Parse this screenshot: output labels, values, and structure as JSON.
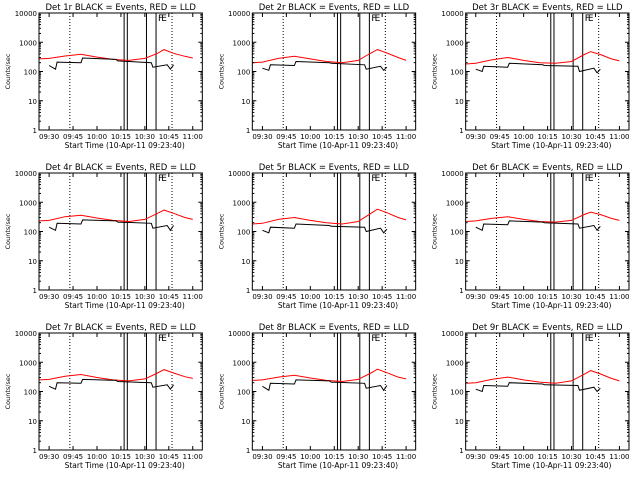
{
  "chart_data": [
    {
      "type": "line",
      "title": "Det 1r BLACK = Events, RED = LLD",
      "xlabel": "Start Time (10-Apr-11 09:23:40)",
      "ylabel": "Counts/sec",
      "xticks": [
        "09:30",
        "09:45",
        "10:00",
        "10:15",
        "10:30",
        "10:45",
        "11:00"
      ],
      "yticks": [
        "1",
        "10",
        "100",
        "1000",
        "10000"
      ],
      "ylim": [
        1,
        10000
      ],
      "yscale": "log",
      "vlines_dotted": [
        "09:43",
        "10:47"
      ],
      "vlines_solid": [
        "10:17",
        "10:19",
        "10:31",
        "10:37"
      ],
      "flags": [
        {
          "label": "F",
          "x": "10:37"
        },
        {
          "label": "E",
          "x": "10:39"
        }
      ],
      "series": [
        {
          "name": "RED = LLD",
          "color": "#ff0000",
          "x": [
            "09:24",
            "09:30",
            "09:40",
            "09:50",
            "10:00",
            "10:10",
            "10:20",
            "10:30",
            "10:38",
            "10:42",
            "10:48",
            "10:55",
            "11:00"
          ],
          "values": [
            270,
            280,
            340,
            390,
            310,
            260,
            240,
            280,
            420,
            560,
            420,
            330,
            290
          ]
        },
        {
          "name": "BLACK = Events",
          "color": "#000000",
          "x": [
            "09:30",
            "09:34",
            "09:35",
            "09:50",
            "09:51",
            "10:12",
            "10:13",
            "10:34",
            "10:35",
            "10:44",
            "10:46",
            "10:48"
          ],
          "values": [
            160,
            120,
            210,
            200,
            290,
            260,
            230,
            200,
            140,
            170,
            120,
            170
          ]
        }
      ]
    },
    {
      "type": "line",
      "title": "Det 2r BLACK = Events, RED = LLD",
      "xlabel": "Start Time (10-Apr-11 09:23:40)",
      "ylabel": "Counts/sec",
      "xticks": [
        "09:30",
        "09:45",
        "10:00",
        "10:15",
        "10:30",
        "10:45",
        "11:00"
      ],
      "yticks": [
        "1",
        "10",
        "100",
        "1000",
        "10000"
      ],
      "ylim": [
        1,
        10000
      ],
      "yscale": "log",
      "vlines_dotted": [
        "09:43",
        "10:47"
      ],
      "vlines_solid": [
        "10:17",
        "10:19",
        "10:31",
        "10:37"
      ],
      "flags": [
        {
          "label": "F",
          "x": "10:37"
        },
        {
          "label": "E",
          "x": "10:39"
        }
      ],
      "series": [
        {
          "name": "RED = LLD",
          "color": "#ff0000",
          "x": [
            "09:24",
            "09:30",
            "09:40",
            "09:50",
            "10:00",
            "10:10",
            "10:20",
            "10:30",
            "10:38",
            "10:42",
            "10:48",
            "10:55",
            "11:00"
          ],
          "values": [
            200,
            210,
            280,
            330,
            270,
            220,
            200,
            240,
            430,
            560,
            430,
            300,
            240
          ]
        },
        {
          "name": "BLACK = Events",
          "color": "#000000",
          "x": [
            "09:30",
            "09:34",
            "09:35",
            "09:50",
            "09:51",
            "10:12",
            "10:13",
            "10:34",
            "10:35",
            "10:44",
            "10:46",
            "10:48"
          ],
          "values": [
            130,
            110,
            170,
            160,
            220,
            200,
            190,
            170,
            120,
            150,
            110,
            140
          ]
        }
      ]
    },
    {
      "type": "line",
      "title": "Det 3r BLACK = Events, RED = LLD",
      "xlabel": "Start Time (10-Apr-11 09:23:40)",
      "ylabel": "Counts/sec",
      "xticks": [
        "09:30",
        "09:45",
        "10:00",
        "10:15",
        "10:30",
        "10:45",
        "11:00"
      ],
      "yticks": [
        "1",
        "10",
        "100",
        "1000",
        "10000"
      ],
      "ylim": [
        1,
        10000
      ],
      "yscale": "log",
      "vlines_dotted": [
        "09:43",
        "10:47"
      ],
      "vlines_solid": [
        "10:17",
        "10:19",
        "10:31",
        "10:37"
      ],
      "flags": [
        {
          "label": "F",
          "x": "10:37"
        },
        {
          "label": "E",
          "x": "10:39"
        }
      ],
      "series": [
        {
          "name": "RED = LLD",
          "color": "#ff0000",
          "x": [
            "09:24",
            "09:30",
            "09:40",
            "09:50",
            "10:00",
            "10:10",
            "10:20",
            "10:30",
            "10:38",
            "10:42",
            "10:48",
            "10:55",
            "11:00"
          ],
          "values": [
            180,
            190,
            250,
            300,
            240,
            200,
            190,
            220,
            380,
            480,
            380,
            270,
            230
          ]
        },
        {
          "name": "BLACK = Events",
          "color": "#000000",
          "x": [
            "09:30",
            "09:34",
            "09:35",
            "09:50",
            "09:51",
            "10:12",
            "10:13",
            "10:34",
            "10:35",
            "10:44",
            "10:46",
            "10:48"
          ],
          "values": [
            120,
            100,
            150,
            140,
            190,
            170,
            160,
            150,
            100,
            130,
            90,
            120
          ]
        }
      ]
    },
    {
      "type": "line",
      "title": "Det 4r BLACK = Events, RED = LLD",
      "xlabel": "Start Time (10-Apr-11 09:23:40)",
      "ylabel": "Counts/sec",
      "xticks": [
        "09:30",
        "09:45",
        "10:00",
        "10:15",
        "10:30",
        "10:45",
        "11:00"
      ],
      "yticks": [
        "1",
        "10",
        "100",
        "1000",
        "10000"
      ],
      "ylim": [
        1,
        10000
      ],
      "yscale": "log",
      "vlines_dotted": [
        "09:43",
        "10:47"
      ],
      "vlines_solid": [
        "10:17",
        "10:19",
        "10:31",
        "10:37"
      ],
      "flags": [
        {
          "label": "F",
          "x": "10:37"
        },
        {
          "label": "E",
          "x": "10:39"
        }
      ],
      "series": [
        {
          "name": "RED = LLD",
          "color": "#ff0000",
          "x": [
            "09:24",
            "09:30",
            "09:40",
            "09:50",
            "10:00",
            "10:10",
            "10:20",
            "10:30",
            "10:38",
            "10:42",
            "10:48",
            "10:55",
            "11:00"
          ],
          "values": [
            230,
            240,
            320,
            360,
            290,
            240,
            220,
            260,
            420,
            540,
            420,
            300,
            260
          ]
        },
        {
          "name": "BLACK = Events",
          "color": "#000000",
          "x": [
            "09:30",
            "09:34",
            "09:35",
            "09:50",
            "09:51",
            "10:12",
            "10:13",
            "10:34",
            "10:35",
            "10:44",
            "10:46",
            "10:48"
          ],
          "values": [
            140,
            110,
            190,
            180,
            250,
            230,
            210,
            190,
            130,
            160,
            110,
            160
          ]
        }
      ]
    },
    {
      "type": "line",
      "title": "Det 5r BLACK = Events, RED = LLD",
      "xlabel": "Start Time (10-Apr-11 09:23:40)",
      "ylabel": "Counts/sec",
      "xticks": [
        "09:30",
        "09:45",
        "10:00",
        "10:15",
        "10:30",
        "10:45",
        "11:00"
      ],
      "yticks": [
        "1",
        "10",
        "100",
        "1000",
        "10000"
      ],
      "ylim": [
        1,
        10000
      ],
      "yscale": "log",
      "vlines_dotted": [
        "09:43",
        "10:47"
      ],
      "vlines_solid": [
        "10:17",
        "10:19",
        "10:31",
        "10:37"
      ],
      "flags": [
        {
          "label": "F",
          "x": "10:37"
        },
        {
          "label": "E",
          "x": "10:39"
        }
      ],
      "series": [
        {
          "name": "RED = LLD",
          "color": "#ff0000",
          "x": [
            "09:24",
            "09:30",
            "09:40",
            "09:50",
            "10:00",
            "10:10",
            "10:20",
            "10:30",
            "10:38",
            "10:42",
            "10:48",
            "10:55",
            "11:00"
          ],
          "values": [
            180,
            190,
            260,
            300,
            240,
            200,
            180,
            220,
            420,
            580,
            440,
            300,
            250
          ]
        },
        {
          "name": "BLACK = Events",
          "color": "#000000",
          "x": [
            "09:30",
            "09:34",
            "09:35",
            "09:50",
            "09:51",
            "10:12",
            "10:13",
            "10:34",
            "10:35",
            "10:44",
            "10:46",
            "10:48"
          ],
          "values": [
            110,
            90,
            140,
            130,
            180,
            160,
            150,
            140,
            100,
            130,
            90,
            120
          ]
        }
      ]
    },
    {
      "type": "line",
      "title": "Det 6r BLACK = Events, RED = LLD",
      "xlabel": "Start Time (10-Apr-11 09:23:40)",
      "ylabel": "Counts/sec",
      "xticks": [
        "09:30",
        "09:45",
        "10:00",
        "10:15",
        "10:30",
        "10:45",
        "11:00"
      ],
      "yticks": [
        "1",
        "10",
        "100",
        "1000",
        "10000"
      ],
      "ylim": [
        1,
        10000
      ],
      "yscale": "log",
      "vlines_dotted": [
        "09:43",
        "10:47"
      ],
      "vlines_solid": [
        "10:17",
        "10:19",
        "10:31",
        "10:37"
      ],
      "flags": [
        {
          "label": "F",
          "x": "10:37"
        },
        {
          "label": "E",
          "x": "10:39"
        }
      ],
      "series": [
        {
          "name": "RED = LLD",
          "color": "#ff0000",
          "x": [
            "09:24",
            "09:30",
            "09:40",
            "09:50",
            "10:00",
            "10:10",
            "10:20",
            "10:30",
            "10:38",
            "10:42",
            "10:48",
            "10:55",
            "11:00"
          ],
          "values": [
            220,
            230,
            280,
            320,
            260,
            220,
            210,
            240,
            380,
            460,
            380,
            280,
            240
          ]
        },
        {
          "name": "BLACK = Events",
          "color": "#000000",
          "x": [
            "09:30",
            "09:34",
            "09:35",
            "09:50",
            "09:51",
            "10:12",
            "10:13",
            "10:34",
            "10:35",
            "10:44",
            "10:46",
            "10:48"
          ],
          "values": [
            140,
            110,
            180,
            170,
            230,
            210,
            200,
            180,
            130,
            160,
            110,
            150
          ]
        }
      ]
    },
    {
      "type": "line",
      "title": "Det 7r BLACK = Events, RED = LLD",
      "xlabel": "Start Time (10-Apr-11 09:23:40)",
      "ylabel": "Counts/sec",
      "xticks": [
        "09:30",
        "09:45",
        "10:00",
        "10:15",
        "10:30",
        "10:45",
        "11:00"
      ],
      "yticks": [
        "1",
        "10",
        "100",
        "1000",
        "10000"
      ],
      "ylim": [
        1,
        10000
      ],
      "yscale": "log",
      "vlines_dotted": [
        "09:43",
        "10:47"
      ],
      "vlines_solid": [
        "10:17",
        "10:19",
        "10:31",
        "10:37"
      ],
      "flags": [
        {
          "label": "F",
          "x": "10:37"
        },
        {
          "label": "E",
          "x": "10:39"
        }
      ],
      "series": [
        {
          "name": "RED = LLD",
          "color": "#ff0000",
          "x": [
            "09:24",
            "09:30",
            "09:40",
            "09:50",
            "10:00",
            "10:10",
            "10:20",
            "10:30",
            "10:38",
            "10:42",
            "10:48",
            "10:55",
            "11:00"
          ],
          "values": [
            250,
            260,
            330,
            380,
            300,
            250,
            230,
            270,
            430,
            560,
            430,
            320,
            280
          ]
        },
        {
          "name": "BLACK = Events",
          "color": "#000000",
          "x": [
            "09:30",
            "09:34",
            "09:35",
            "09:50",
            "09:51",
            "10:12",
            "10:13",
            "10:34",
            "10:35",
            "10:44",
            "10:46",
            "10:48"
          ],
          "values": [
            150,
            120,
            200,
            190,
            260,
            240,
            220,
            200,
            140,
            170,
            120,
            170
          ]
        }
      ]
    },
    {
      "type": "line",
      "title": "Det 8r BLACK = Events, RED = LLD",
      "xlabel": "Start Time (10-Apr-11 09:23:40)",
      "ylabel": "Counts/sec",
      "xticks": [
        "09:30",
        "09:45",
        "10:00",
        "10:15",
        "10:30",
        "10:45",
        "11:00"
      ],
      "yticks": [
        "1",
        "10",
        "100",
        "1000",
        "10000"
      ],
      "ylim": [
        1,
        10000
      ],
      "yscale": "log",
      "vlines_dotted": [
        "09:43",
        "10:47"
      ],
      "vlines_solid": [
        "10:17",
        "10:19",
        "10:31",
        "10:37"
      ],
      "flags": [
        {
          "label": "F",
          "x": "10:37"
        },
        {
          "label": "E",
          "x": "10:39"
        }
      ],
      "series": [
        {
          "name": "RED = LLD",
          "color": "#ff0000",
          "x": [
            "09:24",
            "09:30",
            "09:40",
            "09:50",
            "10:00",
            "10:10",
            "10:20",
            "10:30",
            "10:38",
            "10:42",
            "10:48",
            "10:55",
            "11:00"
          ],
          "values": [
            240,
            250,
            310,
            360,
            290,
            240,
            220,
            260,
            430,
            580,
            440,
            310,
            270
          ]
        },
        {
          "name": "BLACK = Events",
          "color": "#000000",
          "x": [
            "09:30",
            "09:34",
            "09:35",
            "09:50",
            "09:51",
            "10:12",
            "10:13",
            "10:34",
            "10:35",
            "10:44",
            "10:46",
            "10:48"
          ],
          "values": [
            150,
            110,
            190,
            180,
            250,
            230,
            210,
            190,
            130,
            160,
            110,
            160
          ]
        }
      ]
    },
    {
      "type": "line",
      "title": "Det 9r BLACK = Events, RED = LLD",
      "xlabel": "Start Time (10-Apr-11 09:23:40)",
      "ylabel": "Counts/sec",
      "xticks": [
        "09:30",
        "09:45",
        "10:00",
        "10:15",
        "10:30",
        "10:45",
        "11:00"
      ],
      "yticks": [
        "1",
        "10",
        "100",
        "1000",
        "10000"
      ],
      "ylim": [
        1,
        10000
      ],
      "yscale": "log",
      "vlines_dotted": [
        "09:43",
        "10:47"
      ],
      "vlines_solid": [
        "10:17",
        "10:19",
        "10:31",
        "10:37"
      ],
      "flags": [
        {
          "label": "F",
          "x": "10:37"
        },
        {
          "label": "E",
          "x": "10:39"
        }
      ],
      "series": [
        {
          "name": "RED = LLD",
          "color": "#ff0000",
          "x": [
            "09:24",
            "09:30",
            "09:40",
            "09:50",
            "10:00",
            "10:10",
            "10:20",
            "10:30",
            "10:38",
            "10:42",
            "10:48",
            "10:55",
            "11:00"
          ],
          "values": [
            190,
            200,
            260,
            310,
            250,
            210,
            190,
            230,
            390,
            520,
            400,
            280,
            230
          ]
        },
        {
          "name": "BLACK = Events",
          "color": "#000000",
          "x": [
            "09:30",
            "09:34",
            "09:35",
            "09:50",
            "09:51",
            "10:12",
            "10:13",
            "10:34",
            "10:35",
            "10:44",
            "10:46",
            "10:48"
          ],
          "values": [
            120,
            100,
            160,
            150,
            200,
            180,
            170,
            160,
            110,
            140,
            100,
            130
          ]
        }
      ]
    }
  ]
}
